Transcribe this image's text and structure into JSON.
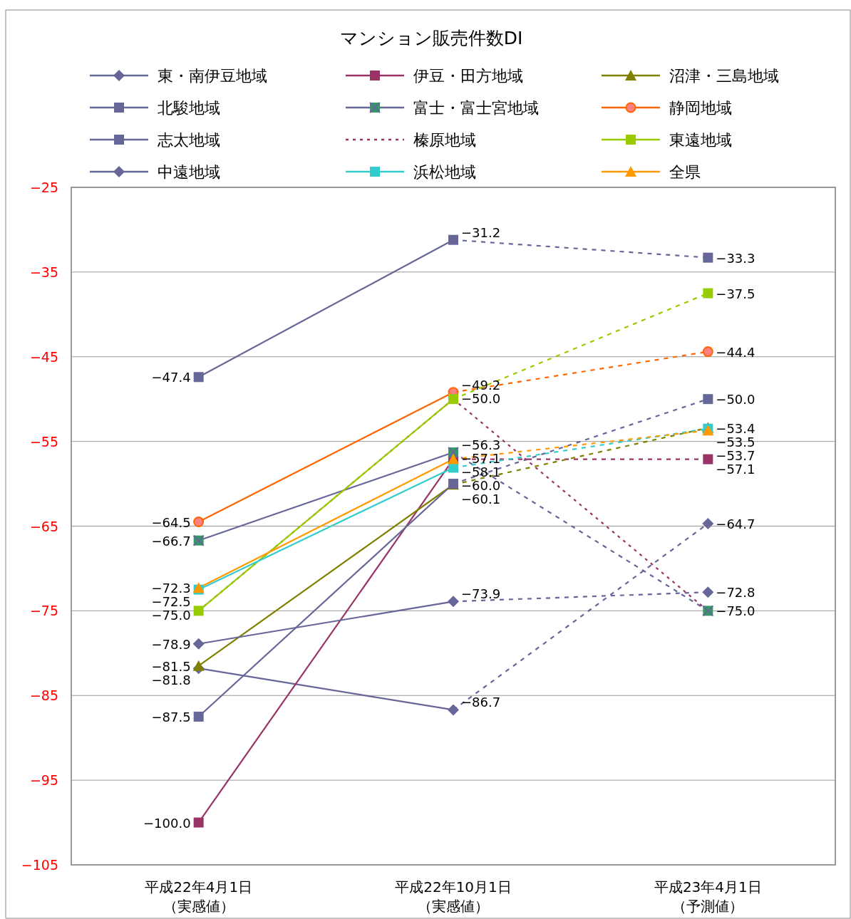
{
  "chart_data": {
    "type": "line",
    "title": "マンション販売件数DI",
    "categories": [
      "平成22年4月1日（実感値）",
      "平成22年10月1日（実感値）",
      "平成23年4月1日（予測値）"
    ],
    "ylim": [
      -105,
      -25
    ],
    "yticks": [
      -25,
      -35,
      -45,
      -55,
      -65,
      -75,
      -85,
      -95,
      -105
    ],
    "grid": "y",
    "legend": "top",
    "series": [
      {
        "name": "東・南伊豆地域",
        "color": "#666699",
        "marker": "diamond",
        "values": [
          -81.8,
          -86.7,
          -64.7
        ],
        "value_labels": [
          "−81.8",
          "−86.7",
          "−64.7"
        ]
      },
      {
        "name": "伊豆・田方地域",
        "color": "#993366",
        "marker": "square",
        "values": [
          -100.0,
          -57.1,
          -57.1
        ],
        "value_labels": [
          "−100.0",
          null,
          "−57.1"
        ]
      },
      {
        "name": "沼津・三島地域",
        "color": "#808000",
        "marker": "triangle",
        "values": [
          -81.5,
          -60.1,
          -53.4
        ],
        "value_labels": [
          "−81.5",
          "−60.1",
          "−53.4"
        ]
      },
      {
        "name": "北駿地域",
        "color": "#666699",
        "marker": "square",
        "values": [
          -47.4,
          -31.2,
          -33.3
        ],
        "value_labels": [
          "−47.4",
          "−31.2",
          "−33.3"
        ]
      },
      {
        "name": "富士・富士宮地域",
        "color": "#666699",
        "marker": "cross",
        "values": [
          -66.7,
          -56.3,
          -75.0
        ],
        "value_labels": [
          "−66.7",
          "−56.3",
          "−75.0"
        ]
      },
      {
        "name": "静岡地域",
        "color": "#ff6600",
        "marker": "circle",
        "values": [
          -64.5,
          -49.2,
          -44.4
        ],
        "value_labels": [
          "−64.5",
          "−49.2",
          "−44.4"
        ]
      },
      {
        "name": "志太地域",
        "color": "#666699",
        "marker": "square",
        "values": [
          -87.5,
          -60.0,
          -50.0
        ],
        "value_labels": [
          "−87.5",
          "−60.0",
          "−50.0"
        ]
      },
      {
        "name": "榛原地域",
        "color": "#993366",
        "marker": "none",
        "line_style": "dotted",
        "values": [
          -75.0,
          -50.0,
          -75.0
        ],
        "value_labels": [
          null,
          null,
          null
        ]
      },
      {
        "name": "東遠地域",
        "color": "#99cc00",
        "marker": "square",
        "values": [
          -75.0,
          -50.0,
          -37.5
        ],
        "value_labels": [
          "−75.0",
          "−50.0",
          "−37.5"
        ]
      },
      {
        "name": "中遠地域",
        "color": "#666699",
        "marker": "diamond",
        "values": [
          -78.9,
          -73.9,
          -72.8
        ],
        "value_labels": [
          "−78.9",
          "−73.9",
          "−72.8"
        ]
      },
      {
        "name": "浜松地域",
        "color": "#33cccc",
        "marker": "square",
        "values": [
          -72.5,
          -58.1,
          -53.5
        ],
        "value_labels": [
          "−72.5",
          "−58.1",
          "−53.5"
        ]
      },
      {
        "name": "全県",
        "color": "#ff9900",
        "marker": "triangle",
        "values": [
          -72.3,
          -57.1,
          -53.7
        ],
        "value_labels": [
          "−72.3",
          "−57.1",
          "−53.7"
        ]
      }
    ]
  }
}
